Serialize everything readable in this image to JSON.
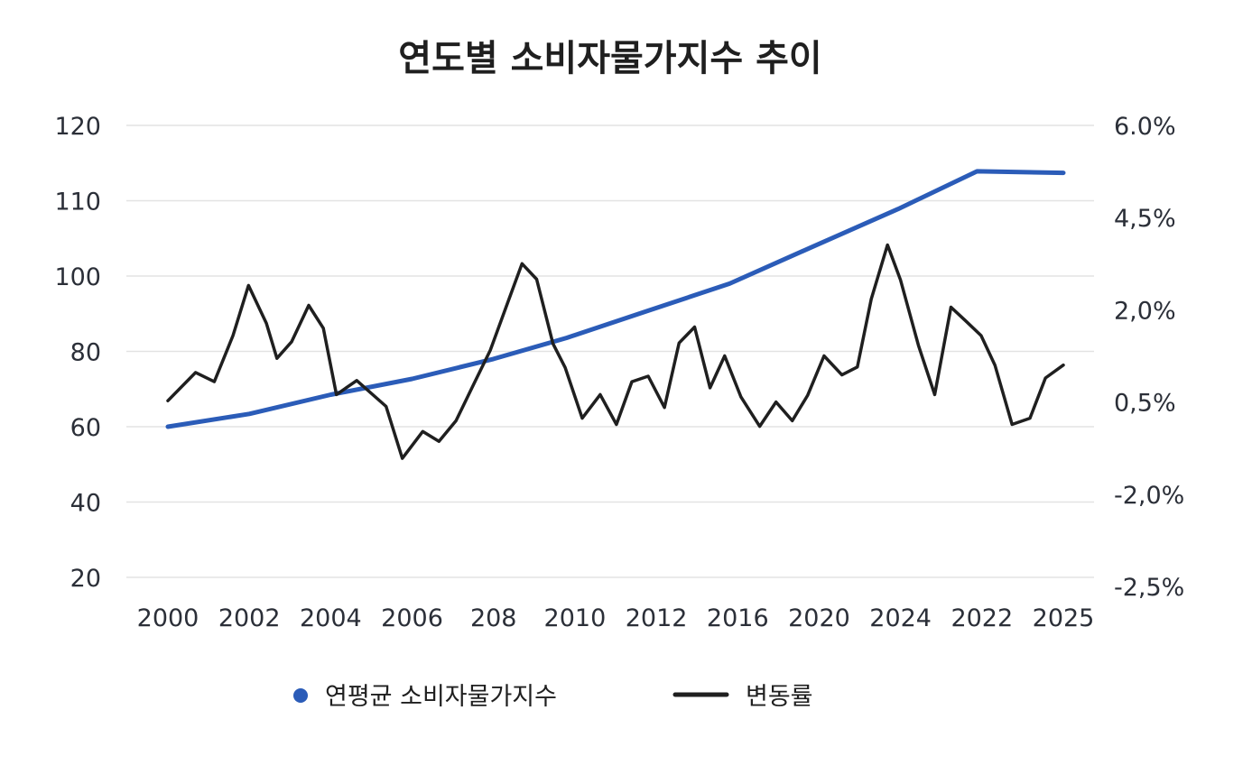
{
  "chart_data": {
    "type": "line",
    "title": "연도별 소비자물가지수 추이",
    "xlabel": "",
    "ylabel": "",
    "grid": true,
    "legend_placement": "bottom-center",
    "x_tick_labels": [
      "2000",
      "2002",
      "2004",
      "2006",
      "208",
      "2010",
      "2012",
      "2016",
      "2020",
      "2024",
      "2022",
      "2025"
    ],
    "y_left_ticks": [
      {
        "value": 120,
        "label": "120"
      },
      {
        "value": 110,
        "label": "110"
      },
      {
        "value": 100,
        "label": "100"
      },
      {
        "value": 80,
        "label": "80"
      },
      {
        "value": 60,
        "label": "60"
      },
      {
        "value": 40,
        "label": "40"
      },
      {
        "value": 20,
        "label": "20"
      }
    ],
    "y_right_ticks": [
      {
        "value": 6.0,
        "label": "6.0%"
      },
      {
        "value": 4.5,
        "label": "4,5%"
      },
      {
        "value": 2.0,
        "label": "2,0%"
      },
      {
        "value": 0.5,
        "label": "0,5%"
      },
      {
        "value": -2.0,
        "label": "-2,0%"
      },
      {
        "value": -2.5,
        "label": "-2,5%"
      }
    ],
    "series": [
      {
        "name": "연평균 소비자물가지수",
        "axis": "left",
        "color": "#2b5cb8",
        "x": [
          0,
          1,
          2,
          3,
          4,
          4.9,
          5.9,
          6.9,
          7.9,
          8.97,
          9.94,
          11
        ],
        "values": [
          60,
          63.4,
          68.5,
          72.7,
          78,
          83.6,
          90.8,
          98,
          103.8,
          108.9,
          113.9,
          113.7
        ]
      },
      {
        "name": "변동률",
        "axis": "right",
        "color": "#1f1f1f",
        "x": [
          0,
          0.34,
          0.57,
          0.8,
          0.99,
          1.21,
          1.34,
          1.52,
          1.73,
          1.91,
          2.07,
          2.32,
          2.68,
          2.88,
          3.13,
          3.33,
          3.54,
          3.76,
          3.96,
          4.19,
          4.35,
          4.53,
          4.73,
          4.88,
          5.09,
          5.31,
          5.51,
          5.7,
          5.9,
          6.1,
          6.28,
          6.47,
          6.66,
          6.84,
          7.04,
          7.27,
          7.47,
          7.67,
          7.86,
          8.06,
          8.28,
          8.47,
          8.64,
          8.84,
          9.0,
          9.22,
          9.42,
          9.62,
          9.8,
          9.99,
          10.16,
          10.37,
          10.59,
          10.78,
          11.0
        ],
        "values": [
          0.52,
          0.98,
          0.83,
          1.58,
          2.66,
          1.78,
          1.21,
          1.48,
          2.12,
          1.7,
          0.62,
          0.85,
          0.38,
          -1.03,
          -0.3,
          -0.57,
          -0.01,
          0.8,
          1.34,
          2.29,
          3.25,
          2.83,
          1.45,
          1.06,
          0.06,
          0.62,
          -0.11,
          0.83,
          0.92,
          0.35,
          1.46,
          1.72,
          0.73,
          1.25,
          0.58,
          -0.16,
          0.5,
          -0.01,
          0.61,
          1.25,
          0.94,
          1.07,
          2.29,
          3.76,
          2.81,
          1.42,
          0.62,
          2.07,
          1.82,
          1.58,
          1.1,
          -0.11,
          0.06,
          0.89,
          1.1
        ]
      }
    ]
  }
}
